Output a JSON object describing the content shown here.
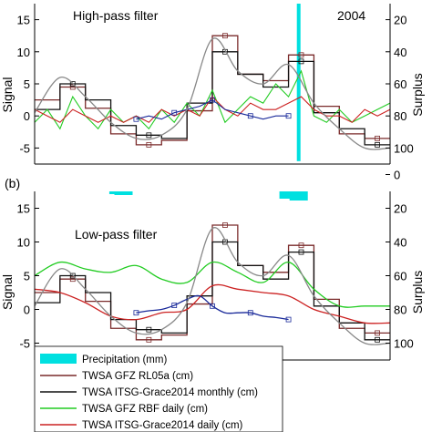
{
  "chart_data": [
    {
      "type": "line",
      "panel_label": "",
      "title": "High-pass filter",
      "annotation": "2004",
      "xlabel": "",
      "ylabel": "Signal",
      "y2label": "Surplus",
      "ylim": [
        -7.5,
        17.5
      ],
      "y2lim": [
        110,
        10
      ],
      "yticks": [
        "-5",
        "0",
        "5",
        "10",
        "15"
      ],
      "y2ticks": [
        "20",
        "40",
        "60",
        "80",
        "100"
      ],
      "x_units": "month index (2004, unlabeled)",
      "xlim": [
        0,
        14
      ],
      "series": [
        {
          "name": "TWSA GFZ RL05a (cm)",
          "color": "#7a2a2a",
          "style": "step",
          "x": [
            0,
            1,
            2,
            3,
            4,
            5,
            6,
            7,
            8,
            9,
            10,
            11,
            12,
            13,
            14
          ],
          "values": [
            2.5,
            4.5,
            1.2,
            -2.8,
            -4.5,
            -3.8,
            0.8,
            12.5,
            6.5,
            5.5,
            9.5,
            1.5,
            -2.8,
            -3.5,
            -3.5
          ]
        },
        {
          "name": "TWSA ITSG-Grace2014 monthly (cm)",
          "color": "#111111",
          "style": "step",
          "x": [
            0,
            1,
            2,
            3,
            4,
            5,
            6,
            7,
            8,
            9,
            10,
            11,
            12,
            13,
            14
          ],
          "values": [
            1.0,
            5.0,
            2.5,
            -1.5,
            -3.0,
            -3.5,
            2.0,
            10.0,
            6.5,
            4.5,
            8.5,
            0.5,
            -2.0,
            -4.5,
            -4.5
          ]
        },
        {
          "name": "TWSA GFZ RBF daily (cm)",
          "color": "#22cc22",
          "style": "line",
          "x": [
            0,
            0.5,
            1,
            1.5,
            2,
            2.5,
            3,
            3.5,
            4,
            4.5,
            5,
            5.5,
            6,
            6.5,
            7,
            7.5,
            8,
            8.5,
            9,
            9.5,
            10,
            10.5,
            11,
            11.5,
            12,
            12.5,
            13,
            13.5,
            14
          ],
          "values": [
            -1,
            1,
            -2,
            3,
            0,
            -2,
            1,
            -1,
            0,
            -2,
            1,
            -1,
            2,
            0,
            4,
            -1,
            1,
            3,
            2,
            5,
            3,
            7,
            0,
            -1,
            1,
            -1,
            0,
            1,
            2
          ]
        },
        {
          "name": "TWSA ITSG-Grace2014 daily (cm)",
          "color": "#cc2222",
          "style": "line",
          "x": [
            0,
            0.5,
            1,
            1.5,
            2,
            2.5,
            3,
            3.5,
            4,
            4.5,
            5,
            5.5,
            6,
            6.5,
            7,
            7.5,
            8,
            8.5,
            9,
            9.5,
            10,
            10.5,
            11,
            11.5,
            12,
            12.5,
            13,
            13.5,
            14
          ],
          "values": [
            1,
            0,
            -1,
            1,
            0,
            -1,
            0,
            -1,
            0,
            -1,
            1,
            0,
            1,
            0,
            3,
            1,
            0,
            2,
            1,
            1,
            2,
            3,
            1,
            0,
            0,
            -1,
            1,
            0,
            1
          ]
        },
        {
          "name": "",
          "color": "#1a2a9a",
          "style": "line",
          "x": [
            4,
            4.5,
            5,
            5.5,
            6,
            6.5,
            7,
            7.5,
            8,
            8.5,
            9,
            9.5,
            10
          ],
          "values": [
            -0.5,
            0,
            -0.5,
            0.5,
            1,
            1.5,
            2.5,
            1,
            0.5,
            0,
            -0.5,
            0,
            0
          ]
        },
        {
          "name": "",
          "color": "#888888",
          "style": "smooth",
          "x": [
            0,
            1,
            2,
            3,
            4,
            5,
            6,
            7,
            8,
            9,
            10,
            11,
            12,
            13,
            14
          ],
          "values": [
            0.5,
            6,
            3,
            -1,
            -3.5,
            -3,
            1,
            12,
            7,
            5,
            8,
            2,
            -2,
            -5,
            -5
          ]
        }
      ],
      "bars": {
        "name": "Precipitation (mm)",
        "color": "#00e0e0",
        "axis": "y2",
        "x": [
          10.4
        ],
        "values": [
          108
        ]
      }
    },
    {
      "type": "line",
      "panel_label": "(b)",
      "title": "Low-pass filter",
      "xlabel": "",
      "ylabel": "Signal",
      "y2label": "Surplus",
      "ylim": [
        -7.5,
        17.5
      ],
      "y2lim": [
        110,
        10
      ],
      "yticks": [
        "-5",
        "0",
        "5",
        "10",
        "15"
      ],
      "y2ticks": [
        "0",
        "20",
        "40",
        "60",
        "80",
        "100"
      ],
      "x_units": "month index (2004, unlabeled)",
      "xlim": [
        0,
        14
      ],
      "series": [
        {
          "name": "TWSA GFZ RL05a (cm)",
          "color": "#7a2a2a",
          "style": "step",
          "x": [
            0,
            1,
            2,
            3,
            4,
            5,
            6,
            7,
            8,
            9,
            10,
            11,
            12,
            13,
            14
          ],
          "values": [
            2.5,
            4.5,
            1.2,
            -2.8,
            -4.5,
            -3.8,
            0.8,
            12.5,
            6.5,
            5.5,
            9.5,
            1.5,
            -2.8,
            -3.5,
            -3.5
          ]
        },
        {
          "name": "TWSA ITSG-Grace2014 monthly (cm)",
          "color": "#111111",
          "style": "step",
          "x": [
            0,
            1,
            2,
            3,
            4,
            5,
            6,
            7,
            8,
            9,
            10,
            11,
            12,
            13,
            14
          ],
          "values": [
            1.0,
            5.0,
            2.5,
            -1.5,
            -3.0,
            -3.5,
            2.0,
            10.0,
            6.5,
            4.5,
            8.5,
            0.5,
            -2.0,
            -4.5,
            -4.5
          ]
        },
        {
          "name": "TWSA GFZ RBF daily (cm)",
          "color": "#22cc22",
          "style": "smooth",
          "x": [
            0,
            1,
            2,
            3,
            4,
            5,
            6,
            7,
            8,
            9,
            10,
            11,
            12,
            13,
            14
          ],
          "values": [
            5,
            7,
            6,
            5.5,
            6.5,
            4.5,
            4,
            7,
            5.5,
            4,
            7,
            3,
            0.5,
            0.5,
            0.5
          ]
        },
        {
          "name": "TWSA ITSG-Grace2014 daily (cm)",
          "color": "#cc2222",
          "style": "smooth",
          "x": [
            0,
            1,
            2,
            3,
            4,
            5,
            6,
            7,
            8,
            9,
            10,
            11,
            12,
            13,
            14
          ],
          "values": [
            3,
            2.5,
            1,
            -1,
            -1.5,
            -0.5,
            0,
            3.5,
            3,
            2.5,
            2,
            0,
            -1,
            -2,
            -2
          ]
        },
        {
          "name": "",
          "color": "#1a2a9a",
          "style": "smooth",
          "x": [
            4,
            4.5,
            5,
            5.5,
            6,
            6.5,
            7,
            7.5,
            8,
            8.5,
            9,
            9.5,
            10
          ],
          "values": [
            -0.5,
            -0.2,
            0,
            0.6,
            1.5,
            2,
            0.5,
            -0.5,
            -0.5,
            -0.5,
            -1,
            -1.2,
            -1.5
          ]
        },
        {
          "name": "",
          "color": "#888888",
          "style": "smooth",
          "x": [
            0,
            1,
            2,
            3,
            4,
            5,
            6,
            7,
            8,
            9,
            10,
            11,
            12,
            13,
            14
          ],
          "values": [
            0.5,
            6,
            3,
            -1,
            -3.5,
            -3,
            1,
            12,
            7,
            5,
            8,
            2,
            -2,
            -5,
            -5
          ]
        }
      ],
      "bars": {
        "name": "Precipitation (mm)",
        "color": "#00e0e0",
        "axis": "y2",
        "x": [
          3.3,
          3.5,
          10.0,
          10.4
        ],
        "values": [
          3,
          4,
          8,
          10
        ]
      }
    }
  ],
  "legend": {
    "entries": [
      {
        "label": "Precipitation (mm)",
        "color": "#00e0e0",
        "kind": "patch"
      },
      {
        "label": "TWSA GFZ RL05a (cm)",
        "color": "#7a2a2a",
        "kind": "line"
      },
      {
        "label": "TWSA ITSG-Grace2014 monthly (cm)",
        "color": "#111111",
        "kind": "line"
      },
      {
        "label": "TWSA GFZ RBF daily (cm)",
        "color": "#22cc22",
        "kind": "line"
      },
      {
        "label": "TWSA ITSG-Grace2014 daily (cm)",
        "color": "#cc2222",
        "kind": "line"
      }
    ],
    "placement": "lower-left"
  }
}
